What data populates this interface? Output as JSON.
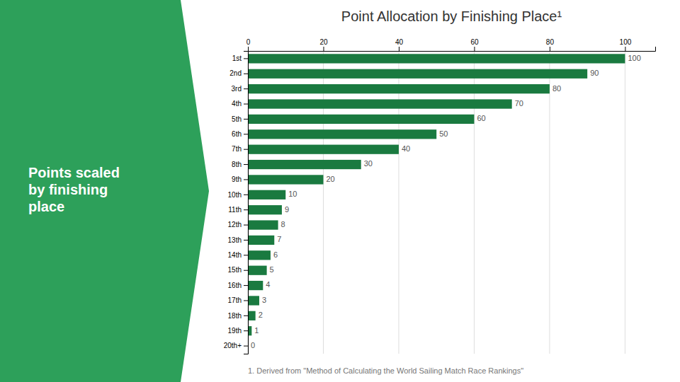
{
  "chart_data": {
    "type": "bar",
    "orientation": "horizontal",
    "title": "Point Allocation by Finishing Place¹",
    "annotations": [
      "Points scaled\nby finishing\nplace",
      "1. Derived from \"Method of Calculating the World Sailing Match Race Rankings\""
    ],
    "categories": [
      "1st",
      "2nd",
      "3rd",
      "4th",
      "5th",
      "6th",
      "7th",
      "8th",
      "9th",
      "10th",
      "11th",
      "12th",
      "13th",
      "14th",
      "15th",
      "16th",
      "17th",
      "18th",
      "19th",
      "20th+"
    ],
    "values": [
      100,
      90,
      80,
      70,
      60,
      50,
      40,
      30,
      20,
      10,
      9,
      8,
      7,
      6,
      5,
      4,
      3,
      2,
      1,
      0
    ],
    "color": "#1a7a40",
    "xlim": [
      0,
      108
    ],
    "xticks": [
      0,
      20,
      40,
      60,
      80,
      100
    ],
    "grid": true,
    "data_labels": true
  }
}
